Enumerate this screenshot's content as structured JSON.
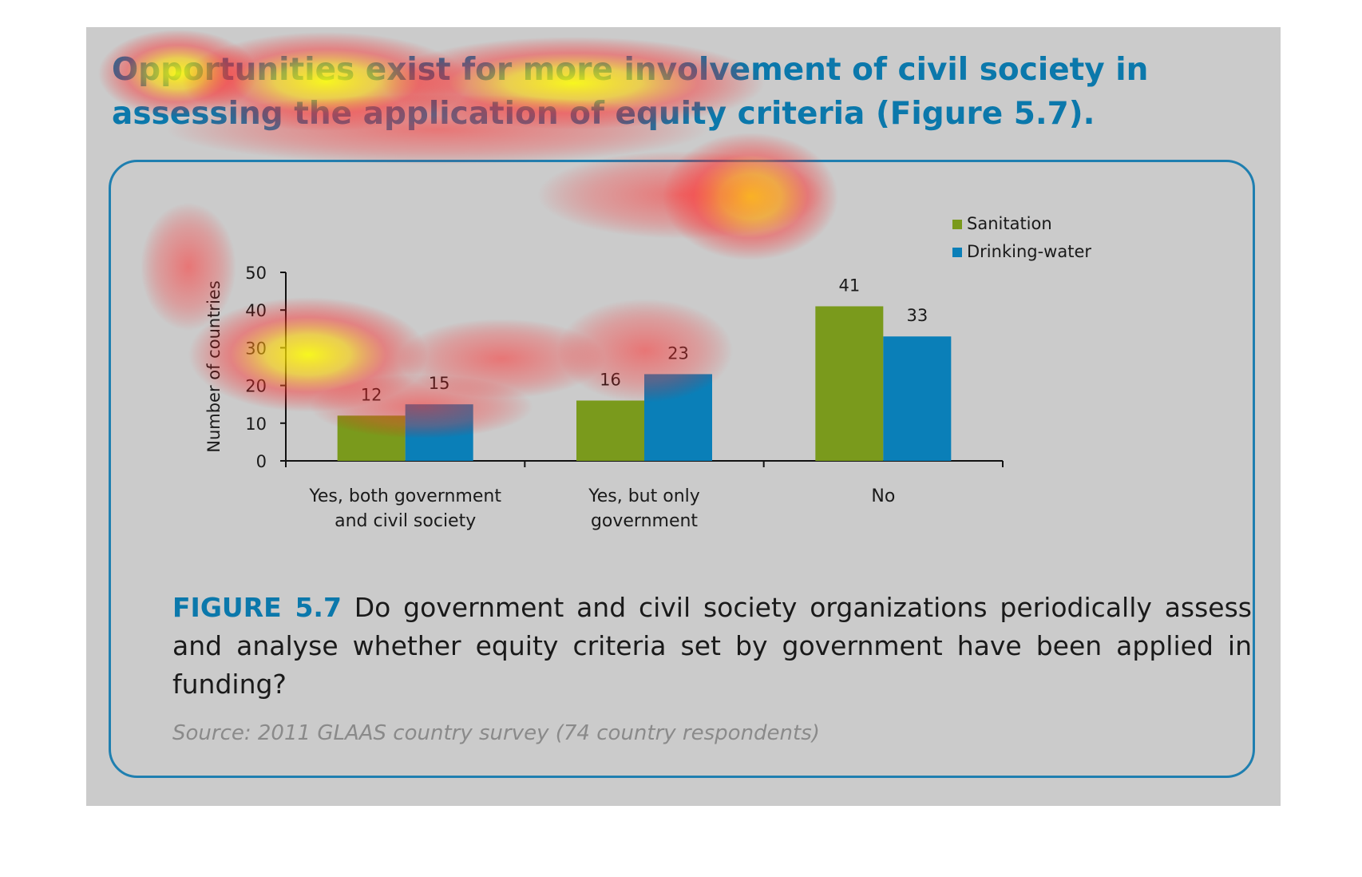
{
  "headline": "Opportunities exist for more involvement of civil society in assessing the application of equity criteria (Figure 5.7).",
  "caption": {
    "label": "FIGURE 5.7",
    "text": " Do government and civil society organizations periodically assess and analyse whether equity criteria set by government have been applied in funding?"
  },
  "source": "Source: 2011 GLAAS country survey (74 country respondents)",
  "colors": {
    "panel_background": "#cbcbcb",
    "accent_blue": "#0b78ab",
    "sanitation": "#7a9a1c",
    "drinking_water": "#0a7fb8"
  },
  "chart_data": {
    "type": "bar",
    "title": "",
    "xlabel": "",
    "ylabel": "Number of countries",
    "ylim": [
      0,
      50
    ],
    "yticks": [
      "0",
      "10",
      "20",
      "30",
      "40",
      "50"
    ],
    "categories": [
      [
        "Yes, both government",
        "and civil society"
      ],
      [
        "Yes, but only",
        "government"
      ],
      [
        "No"
      ]
    ],
    "series": [
      {
        "name": "Sanitation",
        "color": "#7a9a1c",
        "values": [
          12,
          16,
          41
        ]
      },
      {
        "name": "Drinking-water",
        "color": "#0a7fb8",
        "values": [
          15,
          23,
          33
        ]
      }
    ],
    "data_labels": true,
    "legend": "top-right",
    "grid": false
  },
  "heatmap_overlay": {
    "visible": true,
    "colors": [
      "#ff0000",
      "#ffff00"
    ]
  }
}
